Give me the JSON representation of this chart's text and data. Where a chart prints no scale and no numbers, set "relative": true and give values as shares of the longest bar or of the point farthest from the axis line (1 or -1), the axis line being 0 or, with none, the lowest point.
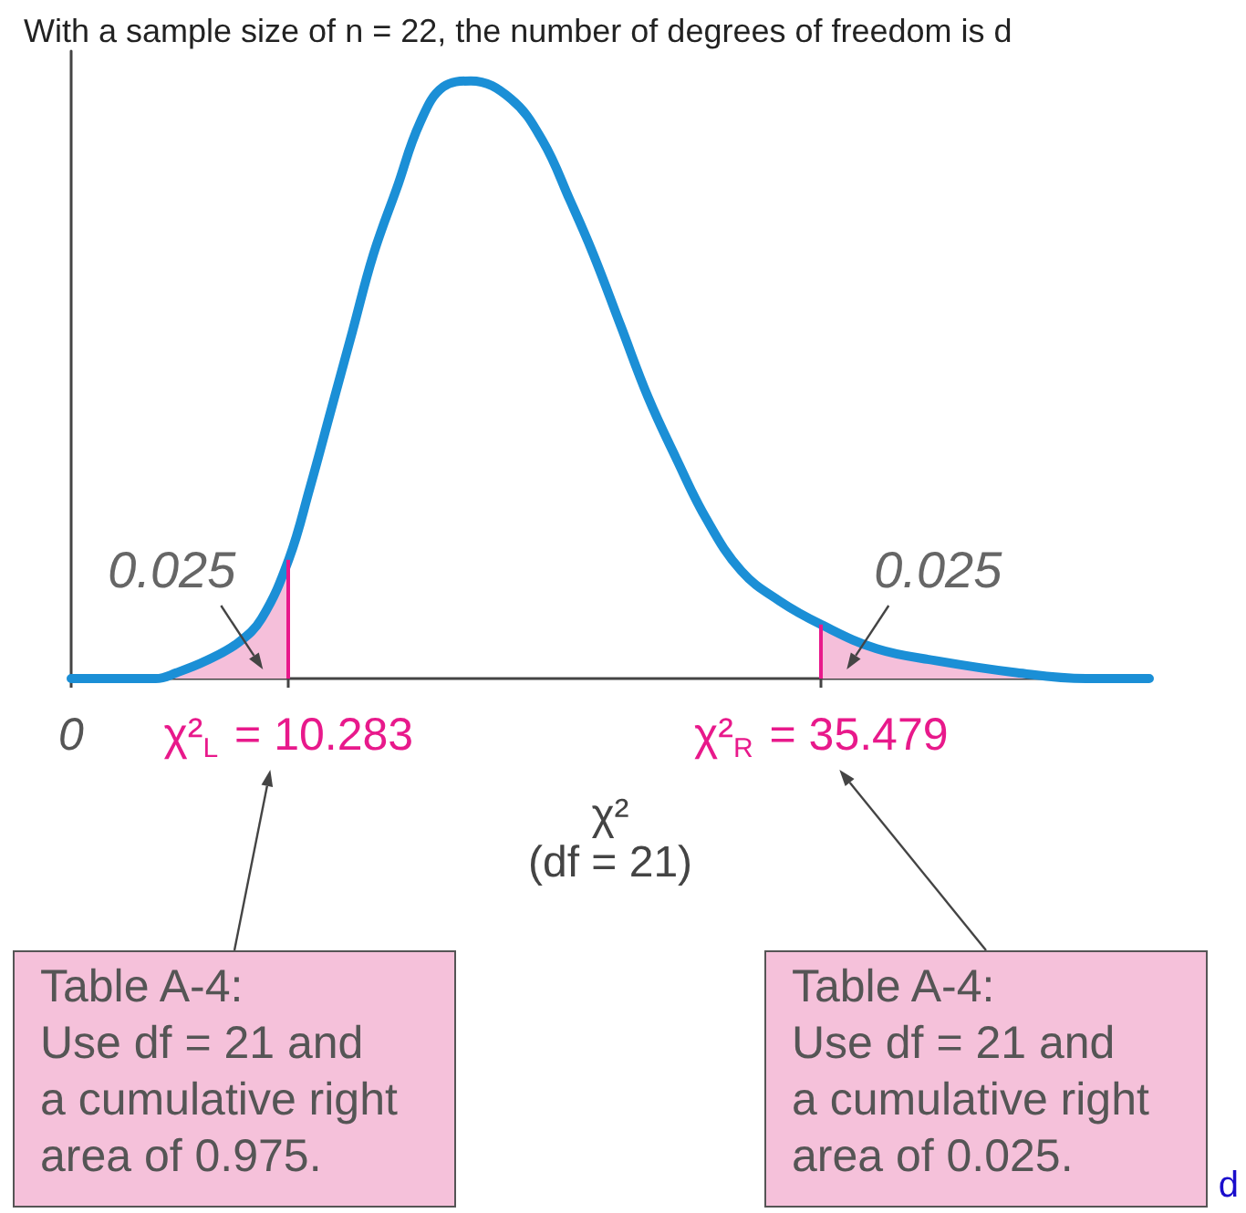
{
  "chart_data": {
    "type": "line",
    "title": "With a sample size of n = 22, the number of degrees of freedom is d",
    "xlabel": "χ²\n(df = 21)",
    "relative": true,
    "xlim": [
      0,
      51
    ],
    "xticks": [
      0,
      {
        "value": 10.283,
        "label": "χ²$_{L}$ = 10.283"
      },
      {
        "value": 35.479,
        "label": "χ²$_{R}$ = 35.479"
      }
    ],
    "tick_labels": "x",
    "series": [
      {
        "color": "#1b8fd6",
        "x": [
          0,
          2,
          4,
          5,
          6.4,
          7.9,
          9,
          10.3,
          11.3,
          12.3,
          13.3,
          14.3,
          15.4,
          16.5,
          17.6,
          18.9,
          20.8,
          22.3,
          23.6,
          24.7,
          26,
          27.3,
          28.6,
          30,
          31.7,
          33.5,
          35.5,
          38.1,
          40.9,
          44.7,
          48,
          51
        ],
        "values": [
          0,
          0,
          0,
          0.01,
          0.03,
          0.06,
          0.1,
          0.2,
          0.32,
          0.45,
          0.58,
          0.71,
          0.82,
          0.93,
          0.99,
          1,
          0.97,
          0.9,
          0.8,
          0.71,
          0.59,
          0.47,
          0.37,
          0.27,
          0.18,
          0.13,
          0.09,
          0.05,
          0.03,
          0.01,
          0,
          0
        ]
      },
      {
        "type": "area",
        "color": "#f5bfda",
        "x": [
          0,
          2,
          4,
          5,
          6.4,
          7.9,
          9,
          10.283
        ],
        "values": [
          0,
          0,
          0,
          0.01,
          0.03,
          0.06,
          0.1,
          0.2
        ]
      },
      {
        "type": "area",
        "color": "#f5bfda",
        "x": [
          35.479,
          38.1,
          40.9,
          44.7,
          48,
          51
        ],
        "values": [
          0.09,
          0.05,
          0.03,
          0.01,
          0,
          0
        ]
      }
    ],
    "ref_lines": [
      {
        "axis": "x",
        "value": 10.283,
        "color": "#e8198b"
      },
      {
        "axis": "x",
        "value": 35.479,
        "color": "#e8198b"
      }
    ],
    "annotations": [
      "0.025",
      "0.025",
      "Table A-4:\nUse df = 21 and\na cumulative right\narea of 0.975.",
      "Table A-4:\nUse df = 21 and\na cumulative right\narea of 0.025.",
      "d"
    ],
    "grid": false
  }
}
